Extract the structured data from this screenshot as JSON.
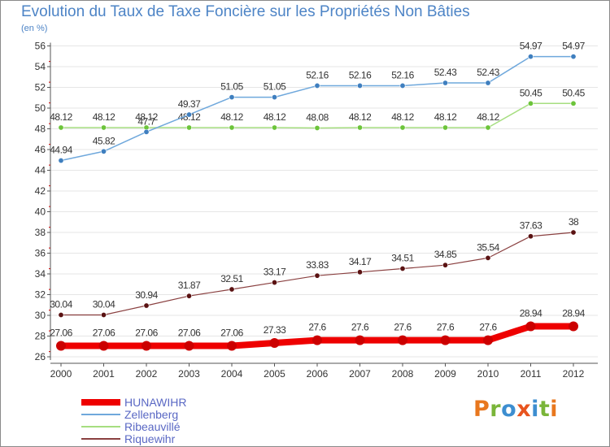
{
  "title": "Evolution du Taux de Taxe Foncière sur les Propriétés Non Bâties",
  "unit": "(en %)",
  "colors": {
    "axis": "#555555",
    "grid": "#e6e6e6",
    "tick_label": "#333333"
  },
  "logo": {
    "letters": [
      "P",
      "r",
      "o",
      "x",
      "i",
      "t",
      "i"
    ],
    "colors": [
      "#e8771e",
      "#7ab539",
      "#3d8ed0",
      "#e8541e",
      "#3d8ed0",
      "#7ab539",
      "#e8771e"
    ]
  },
  "chart_data": {
    "type": "line",
    "title": "Evolution du Taux de Taxe Foncière sur les Propriétés Non Bâties",
    "ylabel": "(en %)",
    "xlabel": "",
    "x": [
      "2000",
      "2001",
      "2002",
      "2003",
      "2004",
      "2005",
      "2006",
      "2007",
      "2008",
      "2009",
      "2010",
      "2011",
      "2012"
    ],
    "ylim": [
      26,
      56
    ],
    "yticks": [
      "26",
      "28",
      "30",
      "32",
      "34",
      "36",
      "38",
      "40",
      "42",
      "44",
      "46",
      "48",
      "50",
      "52",
      "54",
      "56"
    ],
    "grid": false,
    "legend": "bottom-left",
    "series": [
      {
        "name": "HUNAWIHR",
        "color": "#ee0000",
        "marker": "#cc0000",
        "width": 8,
        "values": [
          27.06,
          27.06,
          27.06,
          27.06,
          27.06,
          27.33,
          27.6,
          27.6,
          27.6,
          27.6,
          27.6,
          28.94,
          28.94
        ],
        "labels": [
          "27.06",
          "27.06",
          "27.06",
          "27.06",
          "27.06",
          "27.33",
          "27.6",
          "27.6",
          "27.6",
          "27.6",
          "27.6",
          "28.94",
          "28.94"
        ]
      },
      {
        "name": "Zellenberg",
        "color": "#6fa8dc",
        "marker": "#3f7fbf",
        "width": 1.5,
        "values": [
          44.94,
          45.82,
          47.7,
          49.37,
          51.05,
          51.05,
          52.16,
          52.16,
          52.16,
          52.43,
          52.43,
          54.97,
          54.97
        ],
        "labels": [
          "44.94",
          "45.82",
          "47.7",
          "49.37",
          "51.05",
          "51.05",
          "52.16",
          "52.16",
          "52.16",
          "52.43",
          "52.43",
          "54.97",
          "54.97"
        ]
      },
      {
        "name": "Ribeauvillé",
        "color": "#a6de80",
        "marker": "#6cc43a",
        "width": 1.5,
        "values": [
          48.12,
          48.12,
          48.12,
          48.12,
          48.12,
          48.12,
          48.08,
          48.12,
          48.12,
          48.12,
          48.12,
          50.45,
          50.45
        ],
        "labels": [
          "48.12",
          "48.12",
          "48.12",
          "48.12",
          "48.12",
          "48.12",
          "48.08",
          "48.12",
          "48.12",
          "48.12",
          "48.12",
          "50.45",
          "50.45"
        ]
      },
      {
        "name": "Riquewihr",
        "color": "#8a4040",
        "marker": "#5a1212",
        "width": 1.2,
        "values": [
          30.04,
          30.04,
          30.94,
          31.87,
          32.51,
          33.17,
          33.83,
          34.17,
          34.51,
          34.85,
          35.54,
          37.63,
          38
        ],
        "labels": [
          "30.04",
          "30.04",
          "30.94",
          "31.87",
          "32.51",
          "33.17",
          "33.83",
          "34.17",
          "34.51",
          "34.85",
          "35.54",
          "37.63",
          "38"
        ]
      }
    ]
  }
}
